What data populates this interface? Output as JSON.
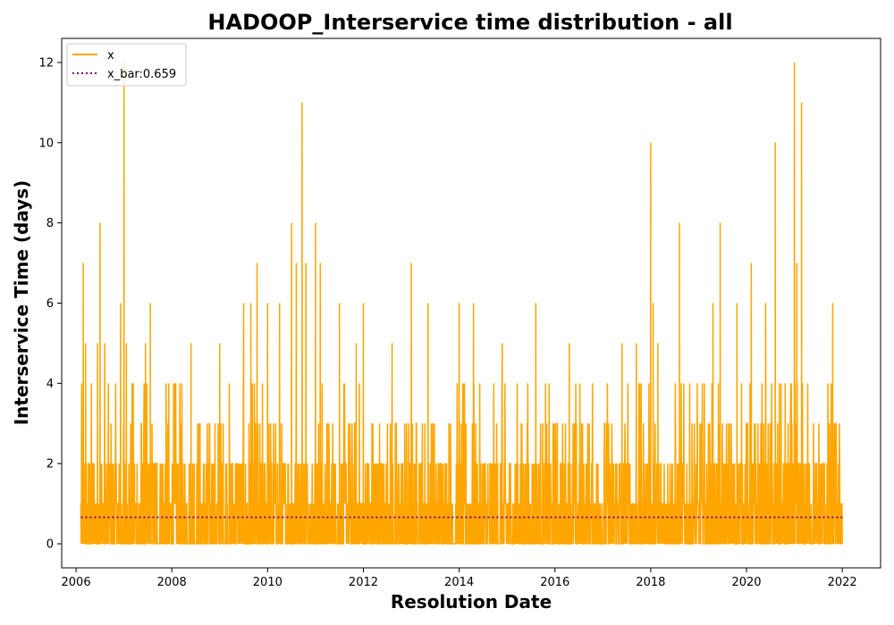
{
  "chart_data": {
    "type": "line",
    "title": "HADOOP_Interservice time distribution - all",
    "xlabel": "Resolution Date",
    "ylabel": "Interservice Time (days)",
    "xlim": [
      2005.7,
      2022.8
    ],
    "ylim": [
      -0.6,
      12.6
    ],
    "x_ticks": [
      2006,
      2008,
      2010,
      2012,
      2014,
      2016,
      2018,
      2020,
      2022
    ],
    "y_ticks": [
      0,
      2,
      4,
      6,
      8,
      10,
      12
    ],
    "x_range": [
      2006.1,
      2022.0
    ],
    "grid": false,
    "legend": "top-left",
    "colors": {
      "x": "#ffa500",
      "x_bar": "#800080"
    },
    "series": [
      {
        "name": "x",
        "style": "solid",
        "peaks": [
          {
            "x": 2006.15,
            "y": 7
          },
          {
            "x": 2006.2,
            "y": 5
          },
          {
            "x": 2006.45,
            "y": 5
          },
          {
            "x": 2006.5,
            "y": 8
          },
          {
            "x": 2006.6,
            "y": 5
          },
          {
            "x": 2006.93,
            "y": 6
          },
          {
            "x": 2007.0,
            "y": 12
          },
          {
            "x": 2007.05,
            "y": 5
          },
          {
            "x": 2007.45,
            "y": 5
          },
          {
            "x": 2007.55,
            "y": 6
          },
          {
            "x": 2008.4,
            "y": 5
          },
          {
            "x": 2009.0,
            "y": 5
          },
          {
            "x": 2009.5,
            "y": 6
          },
          {
            "x": 2009.65,
            "y": 6
          },
          {
            "x": 2009.78,
            "y": 7
          },
          {
            "x": 2010.0,
            "y": 6
          },
          {
            "x": 2010.25,
            "y": 6
          },
          {
            "x": 2010.5,
            "y": 8
          },
          {
            "x": 2010.6,
            "y": 7
          },
          {
            "x": 2010.72,
            "y": 11
          },
          {
            "x": 2010.8,
            "y": 7
          },
          {
            "x": 2011.0,
            "y": 8
          },
          {
            "x": 2011.1,
            "y": 7
          },
          {
            "x": 2011.5,
            "y": 6
          },
          {
            "x": 2011.85,
            "y": 5
          },
          {
            "x": 2012.0,
            "y": 6
          },
          {
            "x": 2012.6,
            "y": 5
          },
          {
            "x": 2013.0,
            "y": 7
          },
          {
            "x": 2013.35,
            "y": 6
          },
          {
            "x": 2014.0,
            "y": 6
          },
          {
            "x": 2014.3,
            "y": 6
          },
          {
            "x": 2014.9,
            "y": 5
          },
          {
            "x": 2015.6,
            "y": 6
          },
          {
            "x": 2016.3,
            "y": 5
          },
          {
            "x": 2017.4,
            "y": 5
          },
          {
            "x": 2017.7,
            "y": 5
          },
          {
            "x": 2018.0,
            "y": 10
          },
          {
            "x": 2018.05,
            "y": 6
          },
          {
            "x": 2018.15,
            "y": 5
          },
          {
            "x": 2018.6,
            "y": 8
          },
          {
            "x": 2019.3,
            "y": 6
          },
          {
            "x": 2019.45,
            "y": 8
          },
          {
            "x": 2019.8,
            "y": 6
          },
          {
            "x": 2020.1,
            "y": 7
          },
          {
            "x": 2020.4,
            "y": 6
          },
          {
            "x": 2020.6,
            "y": 10
          },
          {
            "x": 2021.0,
            "y": 12
          },
          {
            "x": 2021.05,
            "y": 7
          },
          {
            "x": 2021.15,
            "y": 11
          },
          {
            "x": 2021.8,
            "y": 6
          }
        ]
      },
      {
        "name": "x_bar:0.659",
        "style": "dotted",
        "x": [
          2006.1,
          2022.0
        ],
        "values": [
          0.659,
          0.659
        ]
      }
    ]
  }
}
